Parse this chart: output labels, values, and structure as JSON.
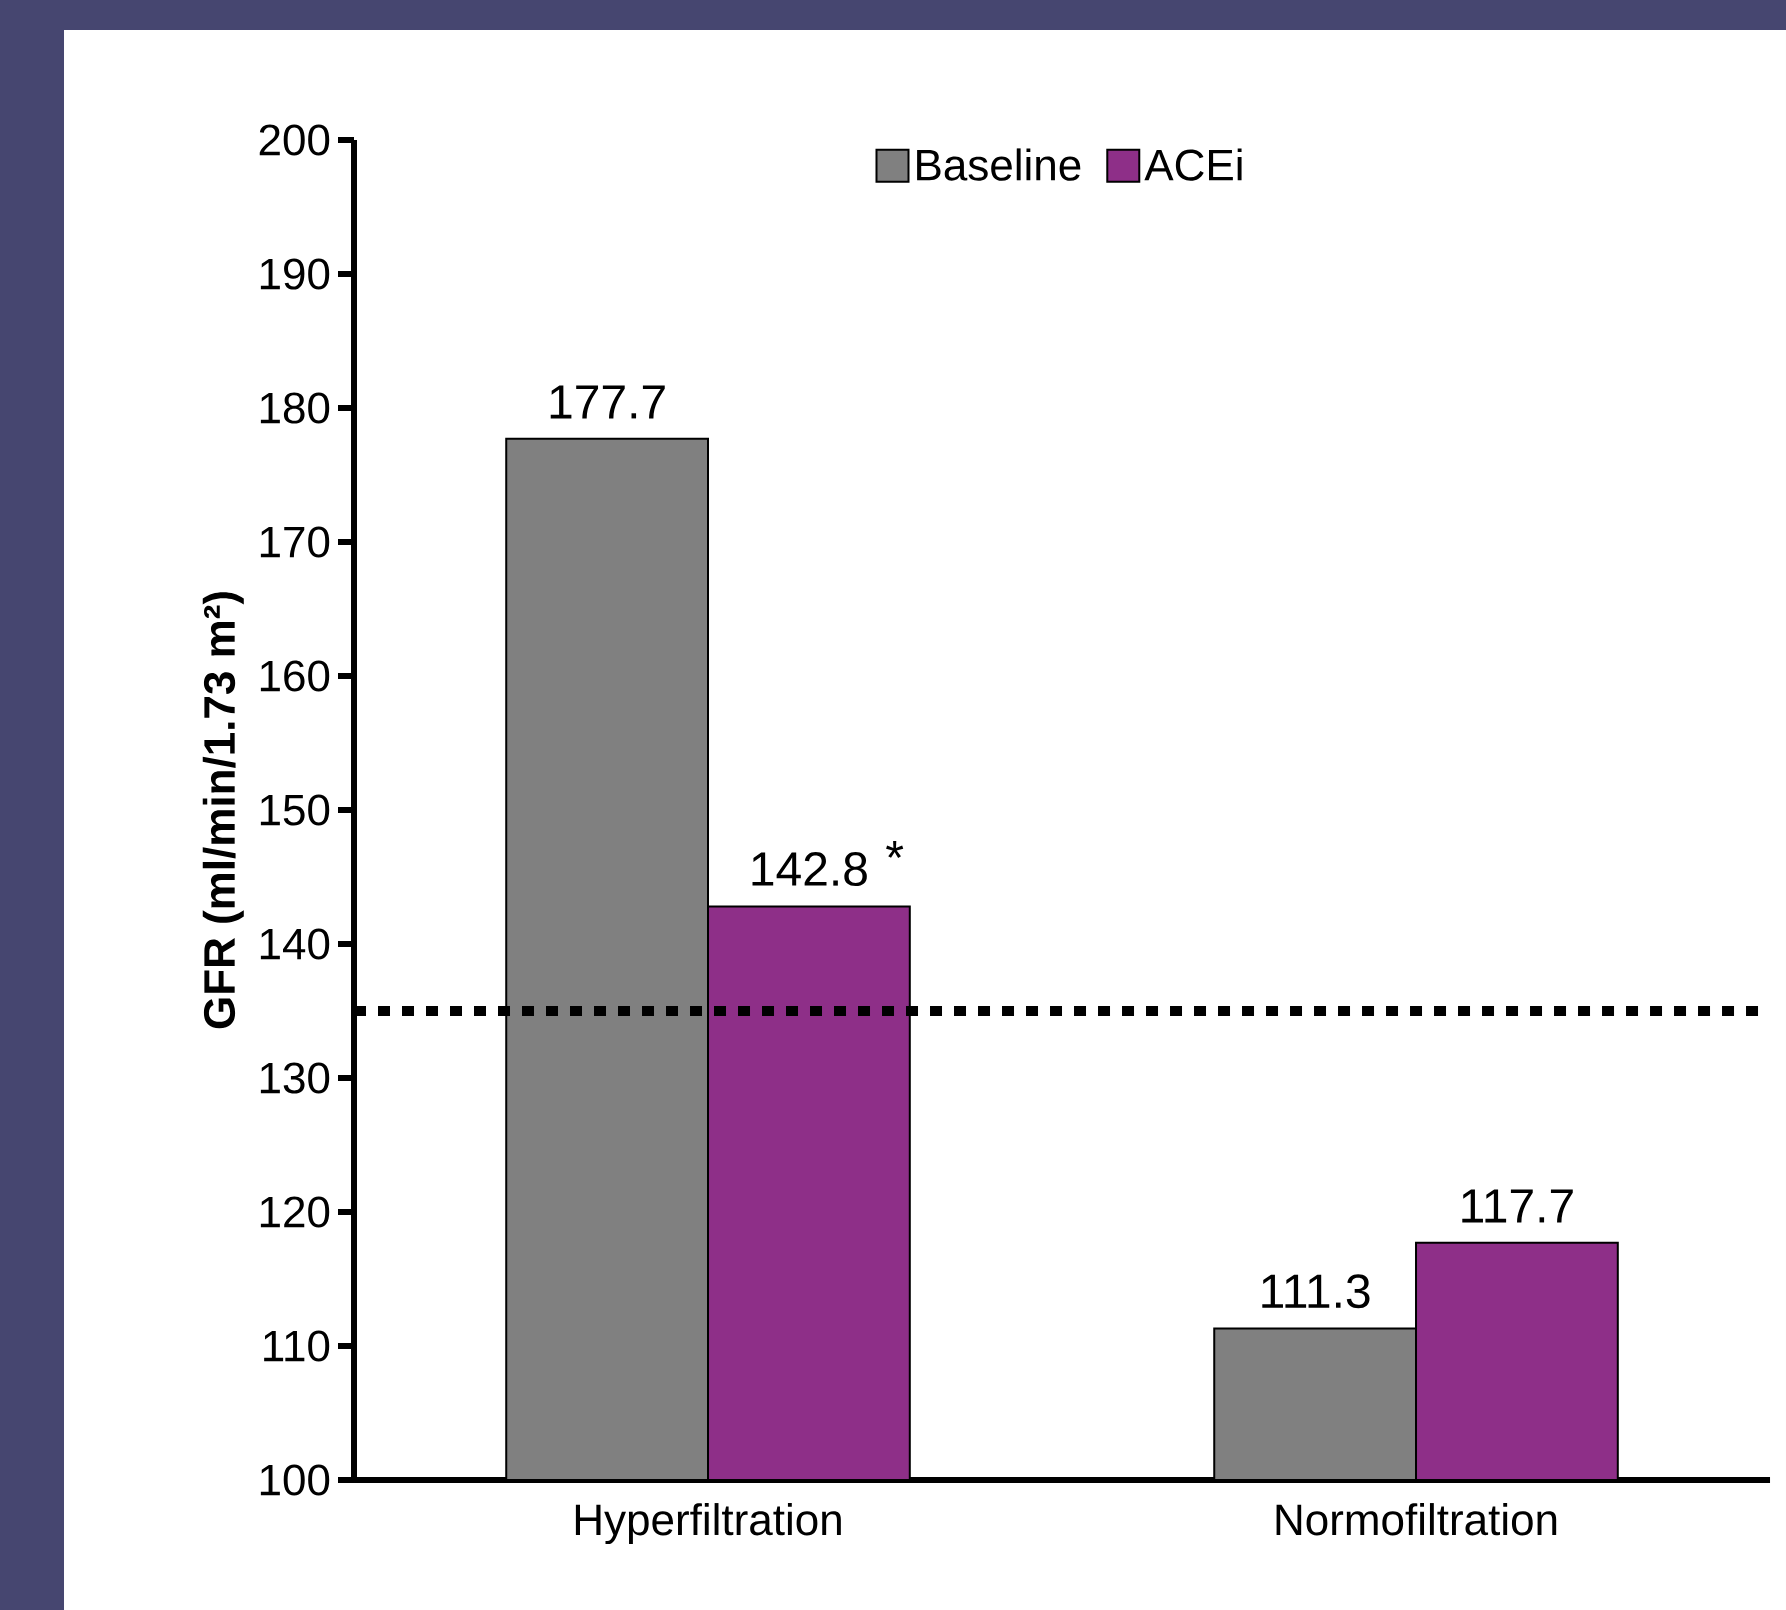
{
  "chart_data": {
    "type": "bar",
    "ylabel": "GFR (ml/min/1.73 m²)",
    "categories": [
      "Hyperfiltration",
      "Normofiltration"
    ],
    "series": [
      {
        "name": "Baseline",
        "color": "#808080",
        "values": [
          177.7,
          111.3
        ]
      },
      {
        "name": "ACEi",
        "color": "#8e2f88",
        "values": [
          142.8,
          117.7
        ]
      }
    ],
    "data_labels": true,
    "ylim": [
      100,
      200
    ],
    "yticks": [
      100,
      110,
      120,
      130,
      140,
      150,
      160,
      170,
      180,
      190,
      200
    ],
    "ref_lines": [
      {
        "axis": "y",
        "value": 135,
        "color": "#000000",
        "line_style": "dotted"
      }
    ],
    "annotations": [
      "*"
    ],
    "legend": "top",
    "grid": false
  }
}
